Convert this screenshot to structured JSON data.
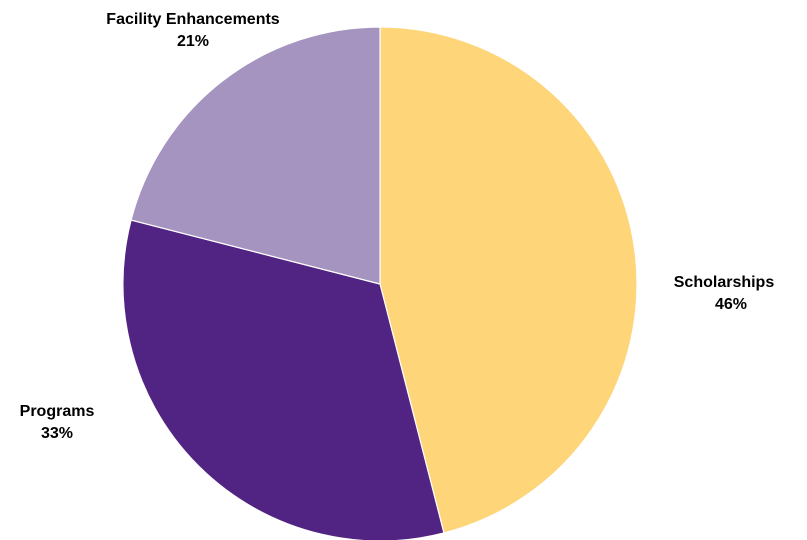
{
  "chart_data": {
    "type": "pie",
    "title": "",
    "slices": [
      {
        "label": "Scholarships",
        "value": 46,
        "display": "46%",
        "color": "#FED578"
      },
      {
        "label": "Programs",
        "value": 33,
        "display": "33%",
        "color": "#512483"
      },
      {
        "label": "Facility Enhancements",
        "value": 21,
        "display": "21%",
        "color": "#A594C0"
      }
    ],
    "start": "top",
    "direction": "clockwise",
    "legend": "none"
  }
}
